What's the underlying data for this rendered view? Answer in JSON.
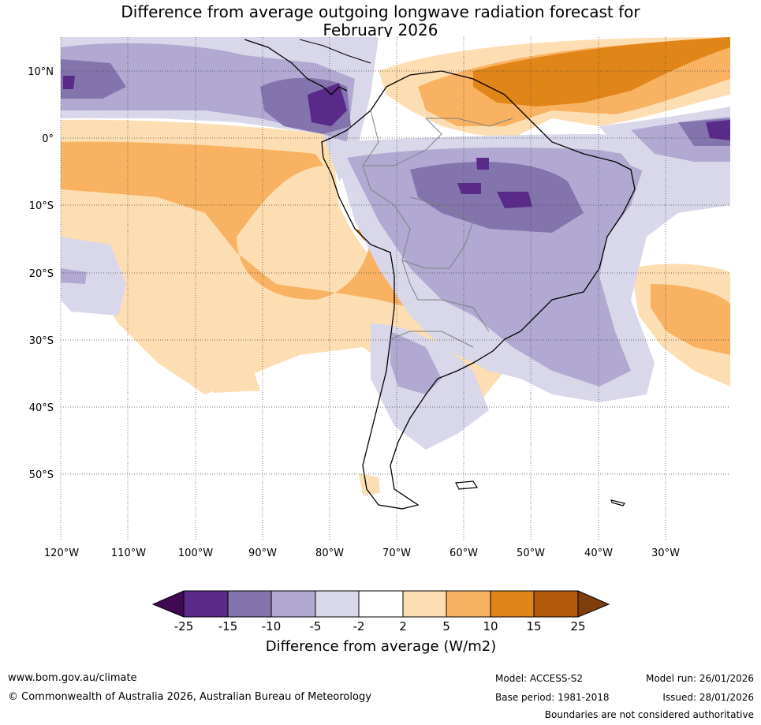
{
  "title": {
    "line1": "Difference from average outgoing longwave radiation forecast for",
    "line2": "February 2026"
  },
  "map": {
    "lat_labels": [
      "10°N",
      "0°",
      "10°S",
      "20°S",
      "30°S",
      "40°S",
      "50°S"
    ],
    "lon_labels": [
      "120°W",
      "110°W",
      "100°W",
      "90°W",
      "80°W",
      "70°W",
      "60°W",
      "50°W",
      "40°W",
      "30°W"
    ]
  },
  "legend": {
    "title": "Difference from average (W/m2)",
    "ticks": [
      "-25",
      "-15",
      "-10",
      "-5",
      "-2",
      "2",
      "5",
      "10",
      "15",
      "25"
    ],
    "colors": [
      "#3f0a52",
      "#5a2a8a",
      "#8474ad",
      "#b1a9d1",
      "#d9d8ea",
      "#ffffff",
      "#fddeb2",
      "#f8b262",
      "#e08518",
      "#b3590c",
      "#7d3f0b"
    ]
  },
  "footer": {
    "website": "www.bom.gov.au/climate",
    "copyright": "© Commonwealth of Australia 2026, Australian Bureau of Meteorology",
    "model": "Model: ACCESS-S2",
    "model_run": "Model run: 26/01/2026",
    "base_period": "Base period: 1981-2018",
    "issued": "Issued: 28/01/2026",
    "disclaimer": "Boundaries are not considered authoritative"
  }
}
